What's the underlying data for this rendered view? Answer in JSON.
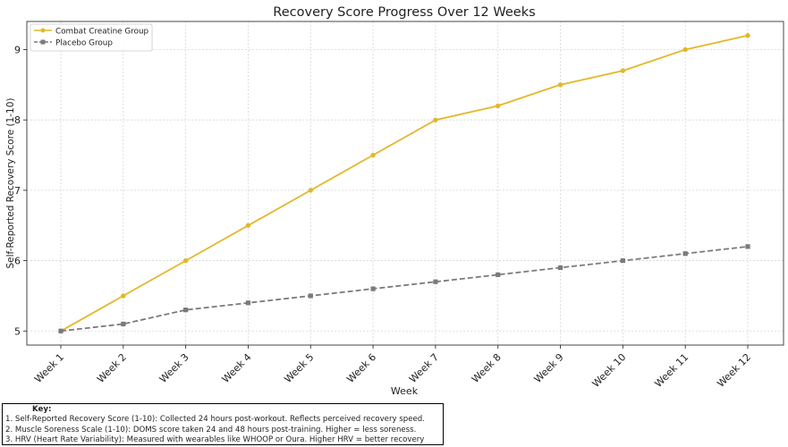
{
  "chart_data": {
    "type": "line",
    "title": "Recovery Score Progress Over 12 Weeks",
    "xlabel": "Week",
    "ylabel": "Self-Reported Recovery Score (1-10)",
    "categories": [
      "Week 1",
      "Week 2",
      "Week 3",
      "Week 4",
      "Week 5",
      "Week 6",
      "Week 7",
      "Week 8",
      "Week 9",
      "Week 10",
      "Week 11",
      "Week 12"
    ],
    "series": [
      {
        "name": "Combat Creatine Group",
        "color": "#e2b82a",
        "marker": "circle",
        "dash": "solid",
        "values": [
          5.0,
          5.5,
          6.0,
          6.5,
          7.0,
          7.5,
          8.0,
          8.2,
          8.5,
          8.7,
          9.0,
          9.2
        ]
      },
      {
        "name": "Placebo Group",
        "color": "#7a7a7a",
        "marker": "square",
        "dash": "dashed",
        "values": [
          5.0,
          5.1,
          5.3,
          5.4,
          5.5,
          5.6,
          5.7,
          5.8,
          5.9,
          6.0,
          6.1,
          6.2
        ]
      }
    ],
    "ylim": [
      4.8,
      9.4
    ],
    "yticks": [
      5,
      6,
      7,
      8,
      9
    ],
    "grid": true,
    "legend": "top-left"
  },
  "key": {
    "title": "Key:",
    "lines": [
      "1. Self-Reported Recovery Score (1-10): Collected 24 hours post-workout. Reflects perceived recovery speed.",
      "2. Muscle Soreness Scale (1-10): DOMS score taken 24 and 48 hours post-training. Higher = less soreness.",
      "3. HRV (Heart Rate Variability): Measured with wearables like WHOOP or Oura. Higher HRV = better recovery"
    ]
  }
}
